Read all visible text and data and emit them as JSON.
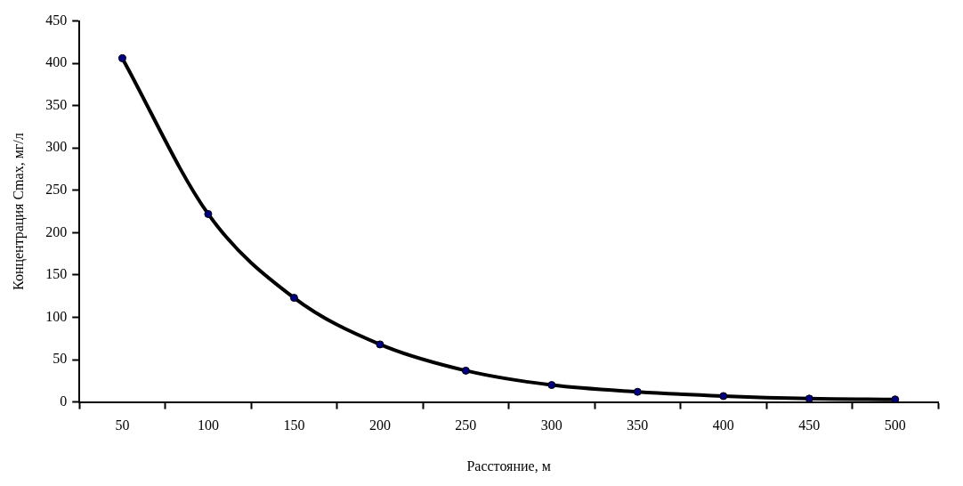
{
  "chart_data": {
    "type": "line",
    "xlabel": "Расстояние, м",
    "ylabel": "Концентрация Cmax, мг/л",
    "categories": [
      "50",
      "100",
      "150",
      "200",
      "250",
      "300",
      "350",
      "400",
      "450",
      "500"
    ],
    "series": [
      {
        "color": "#000000",
        "values": [
          406,
          222,
          123,
          68,
          37,
          20,
          12,
          7,
          4,
          3
        ]
      }
    ],
    "ylim": [
      0,
      450
    ],
    "yticks": [
      0,
      50,
      100,
      150,
      200,
      250,
      300,
      350,
      400,
      450
    ],
    "grid": false,
    "legend": false,
    "marker": "circle",
    "line_style": "solid"
  }
}
